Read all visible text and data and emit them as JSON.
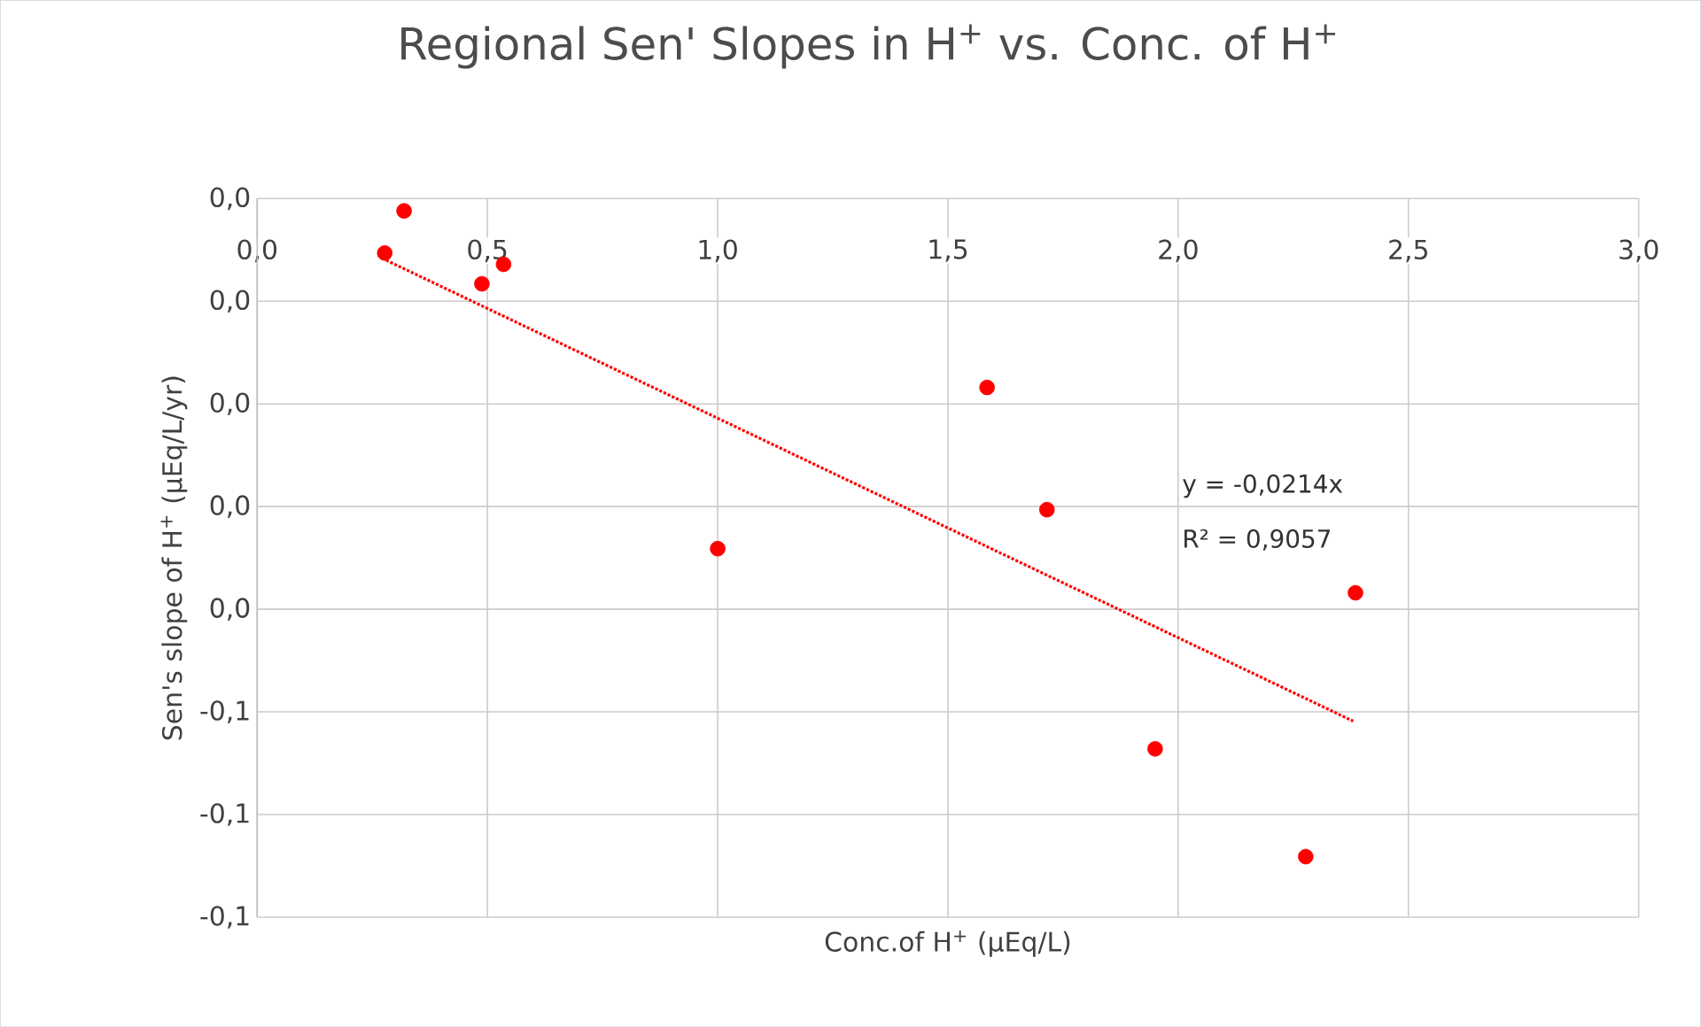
{
  "chart_data": {
    "type": "scatter",
    "title": "Regional Sen'  Slopes in H$^{+}$ vs. Conc. of H$^{+}$",
    "xlabel": "Conc.of  H$^{+}$  (µEq/L)",
    "ylabel": "Sen's slope of H$^{+}$ (µEq/L/yr)",
    "series": [
      {
        "color": "#ff0000",
        "marker": "circle",
        "x": [
          0.319,
          0.277,
          0.488,
          0.535,
          1.0,
          1.585,
          1.715,
          1.95,
          2.277,
          2.385
        ],
        "values": [
          -0.0012,
          -0.0053,
          -0.0083,
          -0.0064,
          -0.0341,
          -0.0184,
          -0.0303,
          -0.0536,
          -0.0641,
          -0.0384
        ]
      },
      {
        "type": "line",
        "color": "#ff0000",
        "marker": "none",
        "line_style": "dotted",
        "x": [
          0.28,
          2.38
        ],
        "values": [
          -0.006,
          -0.0509
        ]
      }
    ],
    "annotations": [
      "y = -0,0214x",
      "R² = 0,9057"
    ],
    "xlim": [
      0,
      3
    ],
    "xticks": [
      {
        "value": 0,
        "label": "0,0"
      },
      {
        "value": 0.5,
        "label": "0,5"
      },
      {
        "value": 1,
        "label": "1,0"
      },
      {
        "value": 1.5,
        "label": "1,5"
      },
      {
        "value": 2,
        "label": "2,0"
      },
      {
        "value": 2.5,
        "label": "2,5"
      },
      {
        "value": 3,
        "label": "3,0"
      }
    ],
    "ylim": [
      -0.07,
      0
    ],
    "yticks": [
      {
        "value": 0,
        "label": "0,0"
      },
      {
        "value": -0.01,
        "label": "0,0"
      },
      {
        "value": -0.02,
        "label": "0,0"
      },
      {
        "value": -0.03,
        "label": "0,0"
      },
      {
        "value": -0.04,
        "label": "0,0"
      },
      {
        "value": -0.05,
        "label": "-0,1"
      },
      {
        "value": -0.06,
        "label": "-0,1"
      },
      {
        "value": -0.07,
        "label": "-0,1"
      }
    ],
    "grid": true
  }
}
